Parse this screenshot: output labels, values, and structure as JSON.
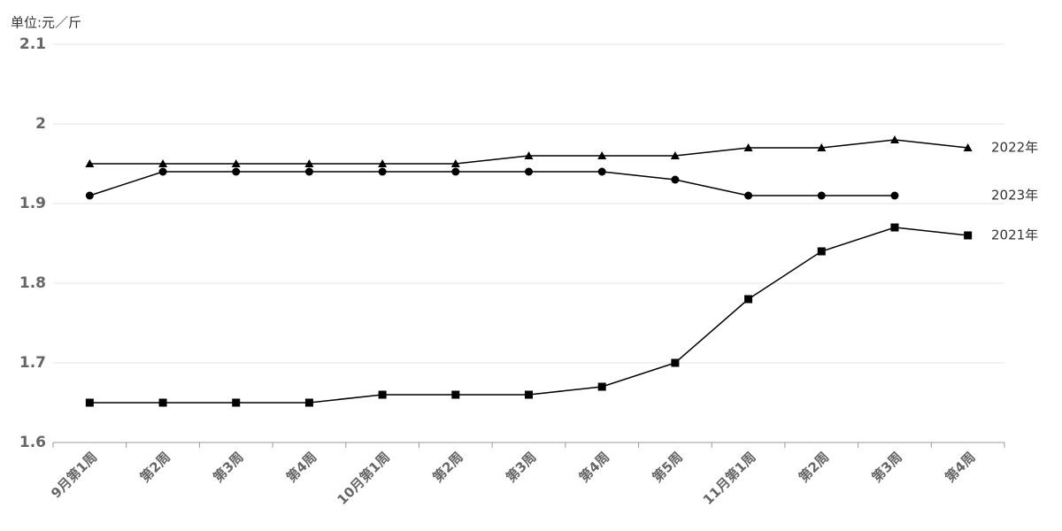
{
  "chart_data": {
    "type": "line",
    "unit_label": "单位:元／斤",
    "categories": [
      "9月第1周",
      "第2周",
      "第3周",
      "第4周",
      "10月第1周",
      "第2周",
      "第3周",
      "第4周",
      "第5周",
      "11月第1周",
      "第2周",
      "第3周",
      "第4周"
    ],
    "series": [
      {
        "name": "2022年",
        "color": "#000000",
        "marker": "triangle",
        "values": [
          1.95,
          1.95,
          1.95,
          1.95,
          1.95,
          1.95,
          1.96,
          1.96,
          1.96,
          1.97,
          1.97,
          1.98,
          1.97
        ]
      },
      {
        "name": "2023年",
        "color": "#000000",
        "marker": "circle",
        "values": [
          1.91,
          1.94,
          1.94,
          1.94,
          1.94,
          1.94,
          1.94,
          1.94,
          1.93,
          1.91,
          1.91,
          1.91,
          null
        ]
      },
      {
        "name": "2021年",
        "color": "#000000",
        "marker": "square",
        "values": [
          1.65,
          1.65,
          1.65,
          1.65,
          1.66,
          1.66,
          1.66,
          1.67,
          1.7,
          1.78,
          1.84,
          1.87,
          1.86
        ]
      }
    ],
    "ylim": [
      1.6,
      2.1
    ],
    "yticks": [
      1.6,
      1.7,
      1.8,
      1.9,
      2,
      2.1
    ],
    "grid": true
  }
}
